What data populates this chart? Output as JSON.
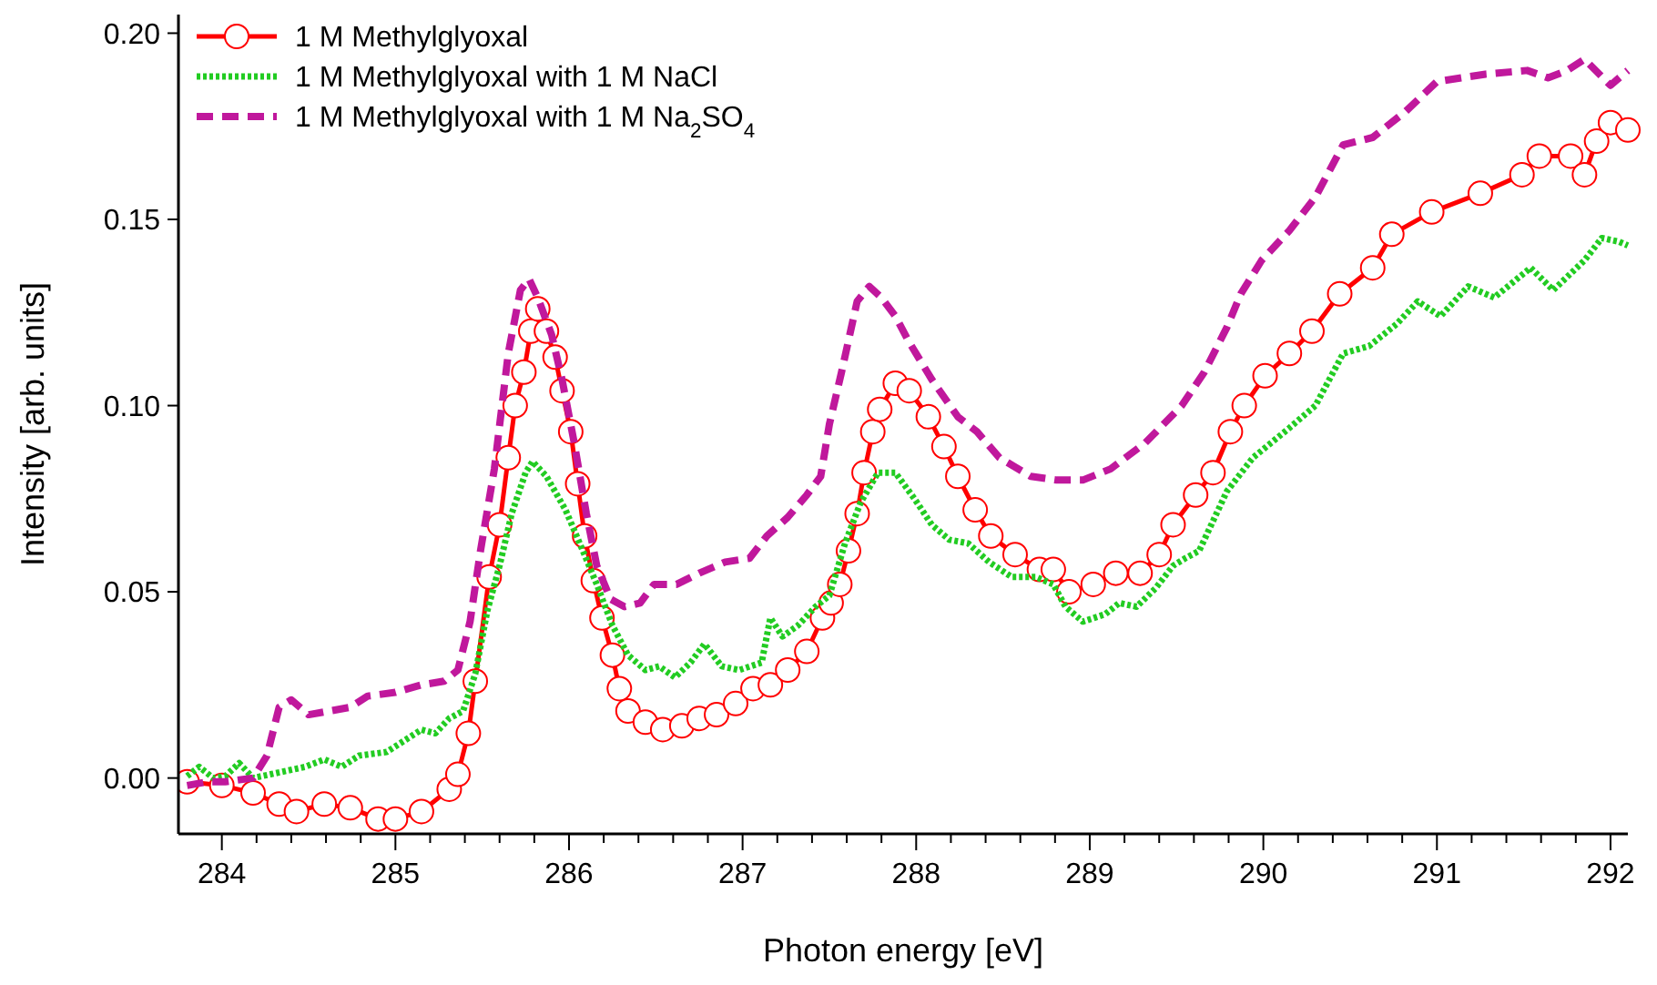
{
  "chart_data": {
    "type": "line",
    "xlabel": "Photon energy [eV]",
    "ylabel": "Intensity [arb. units]",
    "xlim": [
      283.75,
      292.1
    ],
    "ylim": [
      -0.015,
      0.205
    ],
    "xticks": [
      284,
      {
        "value": 284.2,
        "label": null
      },
      {
        "value": 284.4,
        "label": null
      },
      {
        "value": 284.6,
        "label": null
      },
      {
        "value": 284.8,
        "label": null
      },
      285,
      {
        "value": 285.2,
        "label": null
      },
      {
        "value": 285.4,
        "label": null
      },
      {
        "value": 285.6,
        "label": null
      },
      {
        "value": 285.8,
        "label": null
      },
      286,
      {
        "value": 286.2,
        "label": null
      },
      {
        "value": 286.4,
        "label": null
      },
      {
        "value": 286.6,
        "label": null
      },
      {
        "value": 286.8,
        "label": null
      },
      287,
      {
        "value": 287.2,
        "label": null
      },
      {
        "value": 287.4,
        "label": null
      },
      {
        "value": 287.6,
        "label": null
      },
      {
        "value": 287.8,
        "label": null
      },
      288,
      {
        "value": 288.2,
        "label": null
      },
      {
        "value": 288.4,
        "label": null
      },
      {
        "value": 288.6,
        "label": null
      },
      {
        "value": 288.8,
        "label": null
      },
      289,
      {
        "value": 289.2,
        "label": null
      },
      {
        "value": 289.4,
        "label": null
      },
      {
        "value": 289.6,
        "label": null
      },
      {
        "value": 289.8,
        "label": null
      },
      290,
      {
        "value": 290.2,
        "label": null
      },
      {
        "value": 290.4,
        "label": null
      },
      {
        "value": 290.6,
        "label": null
      },
      {
        "value": 290.8,
        "label": null
      },
      291,
      {
        "value": 291.2,
        "label": null
      },
      {
        "value": 291.4,
        "label": null
      },
      {
        "value": 291.6,
        "label": null
      },
      {
        "value": 291.8,
        "label": null
      },
      292
    ],
    "yticks": [
      {
        "value": 0,
        "label": "0.00"
      },
      {
        "value": 0.05,
        "label": "0.05"
      },
      {
        "value": 0.1,
        "label": "0.10"
      },
      {
        "value": 0.15,
        "label": "0.15"
      },
      {
        "value": 0.2,
        "label": "0.20"
      }
    ],
    "grid": false,
    "legend": "top left",
    "series": [
      {
        "name": "1 M Methylglyoxal",
        "color": "#ff0000",
        "marker": "circle",
        "line_style": "solid",
        "x": [
          283.8,
          284.0,
          284.18,
          284.33,
          284.43,
          284.59,
          284.74,
          284.9,
          285.0,
          285.15,
          285.31,
          285.36,
          285.42,
          285.46,
          285.54,
          285.6,
          285.65,
          285.69,
          285.74,
          285.78,
          285.82,
          285.87,
          285.92,
          285.96,
          286.01,
          286.05,
          286.09,
          286.14,
          286.19,
          286.25,
          286.29,
          286.34,
          286.44,
          286.54,
          286.65,
          286.75,
          286.85,
          286.96,
          287.06,
          287.16,
          287.26,
          287.37,
          287.46,
          287.51,
          287.56,
          287.61,
          287.66,
          287.7,
          287.75,
          287.79,
          287.88,
          287.96,
          288.07,
          288.16,
          288.24,
          288.34,
          288.43,
          288.57,
          288.71,
          288.79,
          288.88,
          289.02,
          289.15,
          289.29,
          289.4,
          289.48,
          289.61,
          289.71,
          289.81,
          289.89,
          290.01,
          290.15,
          290.28,
          290.44,
          290.63,
          290.74,
          290.97,
          291.25,
          291.49,
          291.59,
          291.77,
          291.85,
          291.92,
          292.0,
          292.1
        ],
        "values": [
          -0.001,
          -0.002,
          -0.004,
          -0.007,
          -0.009,
          -0.007,
          -0.008,
          -0.011,
          -0.011,
          -0.009,
          -0.003,
          0.001,
          0.012,
          0.026,
          0.054,
          0.068,
          0.086,
          0.1,
          0.109,
          0.12,
          0.126,
          0.12,
          0.113,
          0.104,
          0.093,
          0.079,
          0.065,
          0.053,
          0.043,
          0.033,
          0.024,
          0.018,
          0.015,
          0.013,
          0.014,
          0.016,
          0.017,
          0.02,
          0.024,
          0.025,
          0.029,
          0.034,
          0.043,
          0.047,
          0.052,
          0.061,
          0.071,
          0.082,
          0.093,
          0.099,
          0.106,
          0.104,
          0.097,
          0.089,
          0.081,
          0.072,
          0.065,
          0.06,
          0.056,
          0.056,
          0.05,
          0.052,
          0.055,
          0.055,
          0.06,
          0.068,
          0.076,
          0.082,
          0.093,
          0.1,
          0.108,
          0.114,
          0.12,
          0.13,
          0.137,
          0.146,
          0.152,
          0.157,
          0.162,
          0.167,
          0.167,
          0.162,
          0.171,
          0.176,
          0.174
        ]
      },
      {
        "name": "1 M Methylglyoxal with 1 M NaCl",
        "color": "#22cc22",
        "marker": "none",
        "line_style": "dotted",
        "x": [
          283.8,
          283.87,
          283.95,
          284.02,
          284.1,
          284.18,
          284.28,
          284.38,
          284.48,
          284.59,
          284.69,
          284.79,
          284.95,
          285.05,
          285.15,
          285.23,
          285.31,
          285.39,
          285.46,
          285.53,
          285.6,
          285.67,
          285.75,
          285.79,
          285.87,
          285.98,
          286.08,
          286.16,
          286.25,
          286.34,
          286.44,
          286.52,
          286.61,
          286.7,
          286.78,
          286.88,
          286.98,
          287.11,
          287.16,
          287.23,
          287.32,
          287.42,
          287.5,
          287.59,
          287.68,
          287.78,
          287.88,
          287.99,
          288.09,
          288.19,
          288.3,
          288.42,
          288.55,
          288.69,
          288.79,
          288.86,
          288.96,
          289.09,
          289.17,
          289.27,
          289.38,
          289.48,
          289.55,
          289.63,
          289.79,
          289.94,
          290.15,
          290.3,
          290.46,
          290.61,
          290.77,
          290.89,
          291.02,
          291.18,
          291.33,
          291.54,
          291.67,
          291.85,
          291.95,
          292.05,
          292.1
        ],
        "values": [
          0.0005,
          0.003,
          0,
          0.0005,
          0.004,
          0,
          0.001,
          0.002,
          0.003,
          0.005,
          0.003,
          0.006,
          0.007,
          0.01,
          0.013,
          0.012,
          0.016,
          0.018,
          0.028,
          0.045,
          0.057,
          0.071,
          0.082,
          0.085,
          0.081,
          0.072,
          0.061,
          0.052,
          0.041,
          0.033,
          0.029,
          0.03,
          0.027,
          0.031,
          0.036,
          0.03,
          0.029,
          0.031,
          0.043,
          0.038,
          0.041,
          0.046,
          0.049,
          0.063,
          0.074,
          0.082,
          0.082,
          0.075,
          0.068,
          0.064,
          0.063,
          0.058,
          0.054,
          0.054,
          0.052,
          0.046,
          0.042,
          0.044,
          0.047,
          0.046,
          0.051,
          0.057,
          0.059,
          0.061,
          0.077,
          0.086,
          0.094,
          0.1,
          0.114,
          0.116,
          0.122,
          0.128,
          0.124,
          0.132,
          0.129,
          0.137,
          0.131,
          0.139,
          0.145,
          0.144,
          0.143
        ]
      },
      {
        "name": "1 M Methylglyoxal with 1 M Na$_{2}$SO$_{4}$",
        "color": "#c0189c",
        "marker": "none",
        "line_style": "dashed",
        "x": [
          283.8,
          283.92,
          284.02,
          284.18,
          284.26,
          284.33,
          284.4,
          284.5,
          284.62,
          284.74,
          284.84,
          285.0,
          285.15,
          285.28,
          285.36,
          285.43,
          285.49,
          285.57,
          285.65,
          285.72,
          285.77,
          285.82,
          285.9,
          285.96,
          286.03,
          286.1,
          286.16,
          286.24,
          286.32,
          286.41,
          286.49,
          286.62,
          286.75,
          286.9,
          287.04,
          287.14,
          287.26,
          287.37,
          287.45,
          287.5,
          287.57,
          287.66,
          287.73,
          287.8,
          287.88,
          287.96,
          288.09,
          288.24,
          288.35,
          288.48,
          288.66,
          288.81,
          288.96,
          289.12,
          289.32,
          289.53,
          289.66,
          289.79,
          289.87,
          289.99,
          290.15,
          290.3,
          290.46,
          290.63,
          290.82,
          291.0,
          291.28,
          291.52,
          291.64,
          291.75,
          291.85,
          292.0,
          292.1
        ],
        "values": [
          -0.002,
          -0.001,
          -0.001,
          0,
          0.006,
          0.019,
          0.021,
          0.017,
          0.018,
          0.019,
          0.022,
          0.023,
          0.025,
          0.026,
          0.029,
          0.042,
          0.061,
          0.083,
          0.114,
          0.131,
          0.134,
          0.129,
          0.119,
          0.107,
          0.09,
          0.071,
          0.057,
          0.048,
          0.046,
          0.047,
          0.052,
          0.052,
          0.055,
          0.058,
          0.059,
          0.065,
          0.07,
          0.076,
          0.081,
          0.095,
          0.109,
          0.128,
          0.132,
          0.129,
          0.124,
          0.117,
          0.107,
          0.097,
          0.093,
          0.086,
          0.081,
          0.08,
          0.08,
          0.083,
          0.09,
          0.1,
          0.109,
          0.121,
          0.13,
          0.139,
          0.147,
          0.156,
          0.17,
          0.172,
          0.179,
          0.187,
          0.189,
          0.19,
          0.188,
          0.19,
          0.193,
          0.186,
          0.19
        ]
      }
    ]
  }
}
